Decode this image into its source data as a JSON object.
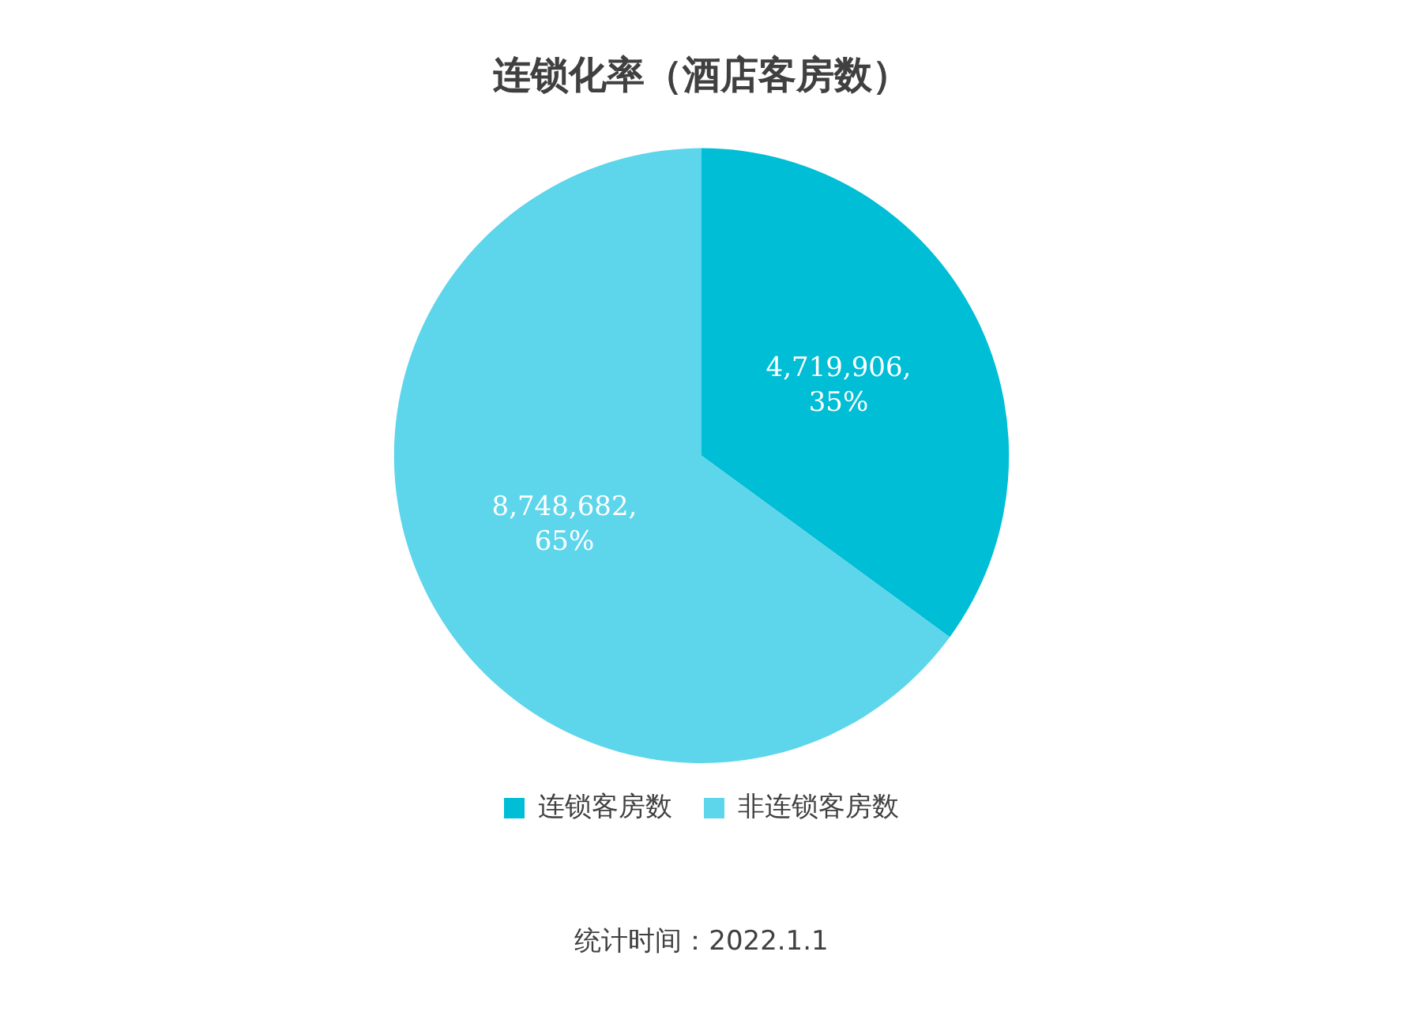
{
  "chart_data": {
    "type": "pie",
    "title": "连锁化率（酒店客房数）",
    "categories": [
      "连锁客房数",
      "非连锁客房数"
    ],
    "values": [
      4719906,
      8748682
    ],
    "colors": [
      "#00bed6",
      "#5dd5eb"
    ],
    "value_labels": [
      "4,719,906,\n35%",
      "8,748,682,\n65%"
    ],
    "legend": "bottom",
    "annotations": [
      "统计时间：2022.1.1"
    ]
  }
}
